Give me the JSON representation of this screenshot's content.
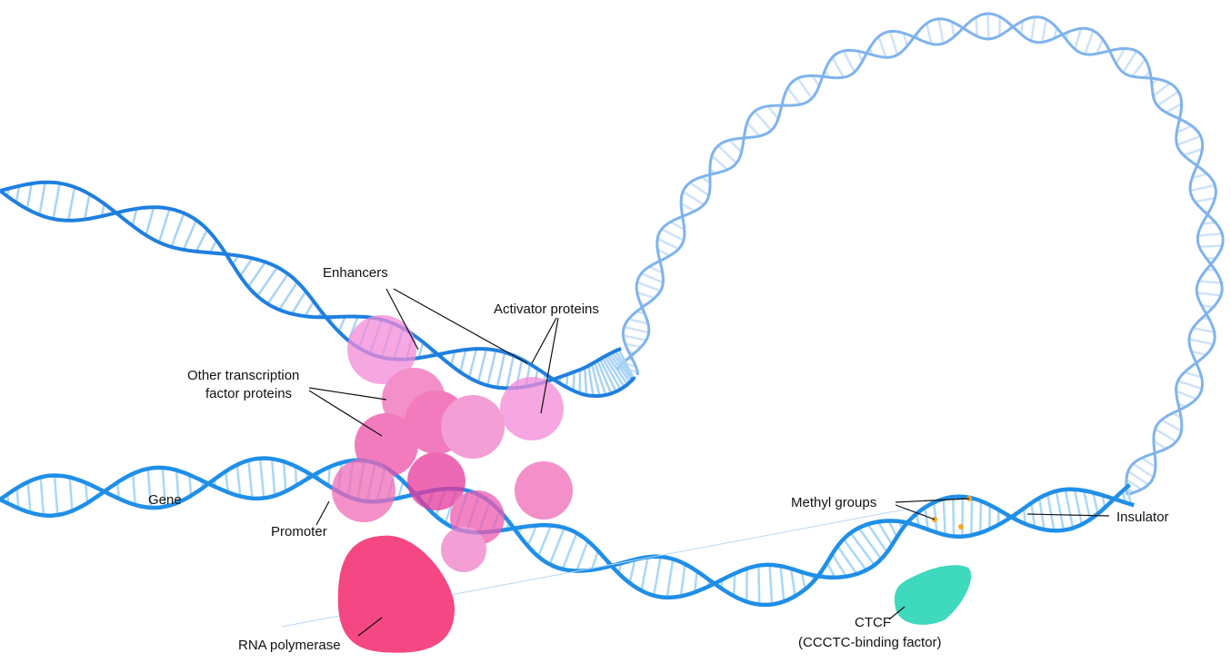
{
  "labels": {
    "enhancers": "Enhancers",
    "activator_proteins": "Activator proteins",
    "other_tf": [
      "Other transcription",
      "factor proteins"
    ],
    "gene": "Gene",
    "promoter": "Promoter",
    "rna_polymerase": "RNA polymerase",
    "methyl_groups": "Methyl groups",
    "insulator": "Insulator",
    "ctcf": "CTCF",
    "ctcf_full": "(CCCTC-binding factor)"
  }
}
